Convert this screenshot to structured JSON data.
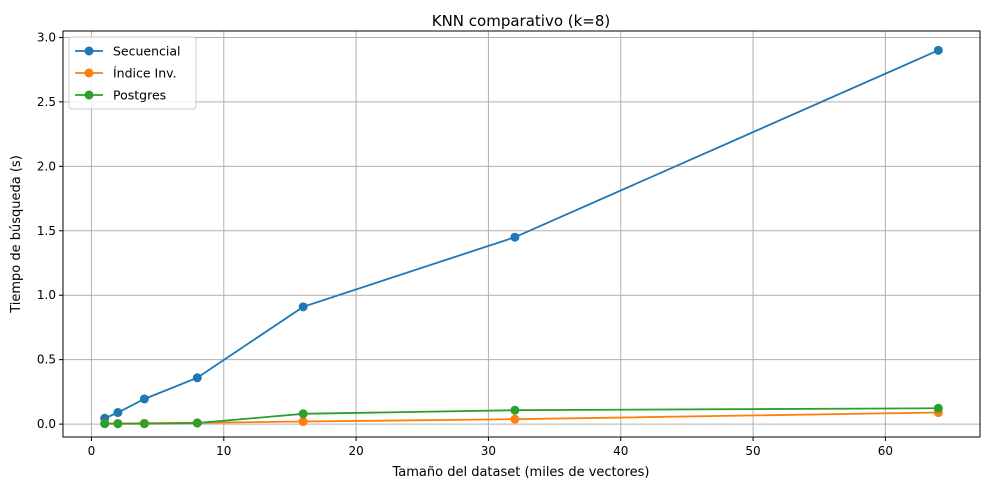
{
  "chart_data": {
    "type": "line",
    "title": "KNN comparativo (k=8)",
    "xlabel": "Tamaño del dataset (miles de vectores)",
    "ylabel": "Tiempo de búsqueda (s)",
    "x": [
      1,
      2,
      4,
      8,
      16,
      32,
      64
    ],
    "xlim": [
      -2.15,
      67.15
    ],
    "ylim": [
      -0.1,
      3.05
    ],
    "xticks": [
      0,
      10,
      20,
      30,
      40,
      50,
      60
    ],
    "yticks": [
      0.0,
      0.5,
      1.0,
      1.5,
      2.0,
      2.5,
      3.0
    ],
    "xtick_labels": [
      "0",
      "10",
      "20",
      "30",
      "40",
      "50",
      "60"
    ],
    "ytick_labels": [
      "0.0",
      "0.5",
      "1.0",
      "1.5",
      "2.0",
      "2.5",
      "3.0"
    ],
    "grid": true,
    "legend_position": "top-left",
    "series": [
      {
        "name": "Secuencial",
        "color": "#1f77b4",
        "values": [
          0.045,
          0.09,
          0.195,
          0.36,
          0.91,
          1.45,
          2.9
        ]
      },
      {
        "name": "Índice Inv.",
        "color": "#ff7f0e",
        "values": [
          0.005,
          0.005,
          0.007,
          0.01,
          0.02,
          0.038,
          0.09
        ]
      },
      {
        "name": "Postgres",
        "color": "#2ca02c",
        "values": [
          0.003,
          0.003,
          0.003,
          0.008,
          0.08,
          0.108,
          0.123
        ]
      }
    ]
  }
}
